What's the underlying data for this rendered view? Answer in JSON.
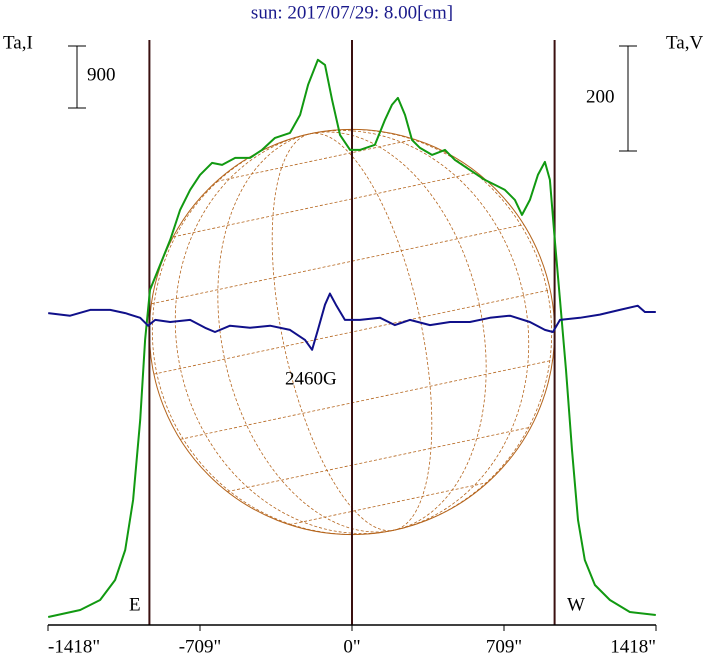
{
  "chart_data": {
    "type": "line",
    "title": "sun: 2017/07/29: 8.00[cm]",
    "y_label": "Ta,I",
    "y2_label": "Ta,V",
    "xlim": [
      -1418,
      1418
    ],
    "xticks": [
      {
        "value": -1418,
        "label": "-1418\""
      },
      {
        "value": -709,
        "label": "-709\""
      },
      {
        "value": 0,
        "label": "0\""
      },
      {
        "value": 709,
        "label": "709\""
      },
      {
        "value": 1418,
        "label": "1418\""
      }
    ],
    "ylim": [
      0,
      8492
    ],
    "y2lim": [
      -581,
      533
    ],
    "scale_bars": {
      "y": 900,
      "y2": 200
    },
    "disk_radius": 945,
    "limb_labels": [
      "E",
      "W"
    ],
    "annotation": "2460G",
    "series": [
      {
        "name": "I",
        "color": "#119911",
        "x": [
          -1417,
          -1268,
          -1175,
          -1105,
          -1058,
          -1021,
          -988,
          -965,
          -942,
          -895,
          -848,
          -802,
          -755,
          -709,
          -653,
          -606,
          -545,
          -476,
          -420,
          -359,
          -289,
          -242,
          -205,
          -159,
          -126,
          -93,
          -56,
          -9,
          37,
          107,
          154,
          186,
          214,
          247,
          280,
          317,
          373,
          434,
          480,
          550,
          620,
          667,
          713,
          760,
          793,
          830,
          867,
          900,
          923,
          946,
          970,
          998,
          1026,
          1054,
          1086,
          1133,
          1203,
          1296,
          1417
        ],
        "values": [
          116,
          218,
          363,
          653,
          1089,
          1815,
          2977,
          4138,
          4864,
          5227,
          5590,
          6026,
          6316,
          6534,
          6708,
          6679,
          6781,
          6781,
          6897,
          7071,
          7144,
          7405,
          7841,
          8204,
          8131,
          7623,
          7115,
          6897,
          6897,
          6970,
          7333,
          7550,
          7652,
          7405,
          7042,
          6926,
          6824,
          6897,
          6752,
          6607,
          6461,
          6389,
          6316,
          6171,
          5953,
          6171,
          6534,
          6723,
          6461,
          5590,
          4719,
          3703,
          2541,
          1525,
          944,
          581,
          363,
          189,
          145
        ]
      },
      {
        "name": "V",
        "color": "#10108a",
        "axis": "y2",
        "x": [
          -1417,
          -1315,
          -1221,
          -1128,
          -1058,
          -988,
          -951,
          -918,
          -848,
          -755,
          -685,
          -639,
          -569,
          -476,
          -382,
          -289,
          -219,
          -186,
          -159,
          -126,
          -103,
          -75,
          -33,
          37,
          131,
          200,
          270,
          364,
          457,
          550,
          643,
          737,
          830,
          900,
          937,
          970,
          1063,
          1156,
          1249,
          1333,
          1366,
          1417
        ],
        "values": [
          13,
          8,
          19,
          19,
          13,
          4,
          -11,
          0,
          -4,
          0,
          -15,
          -23,
          -11,
          -15,
          -11,
          -19,
          -38,
          -57,
          -19,
          29,
          50,
          29,
          0,
          0,
          4,
          -10,
          0,
          -10,
          -4,
          -4,
          4,
          8,
          -4,
          -19,
          -23,
          0,
          4,
          10,
          19,
          27,
          15,
          15
        ]
      }
    ]
  }
}
